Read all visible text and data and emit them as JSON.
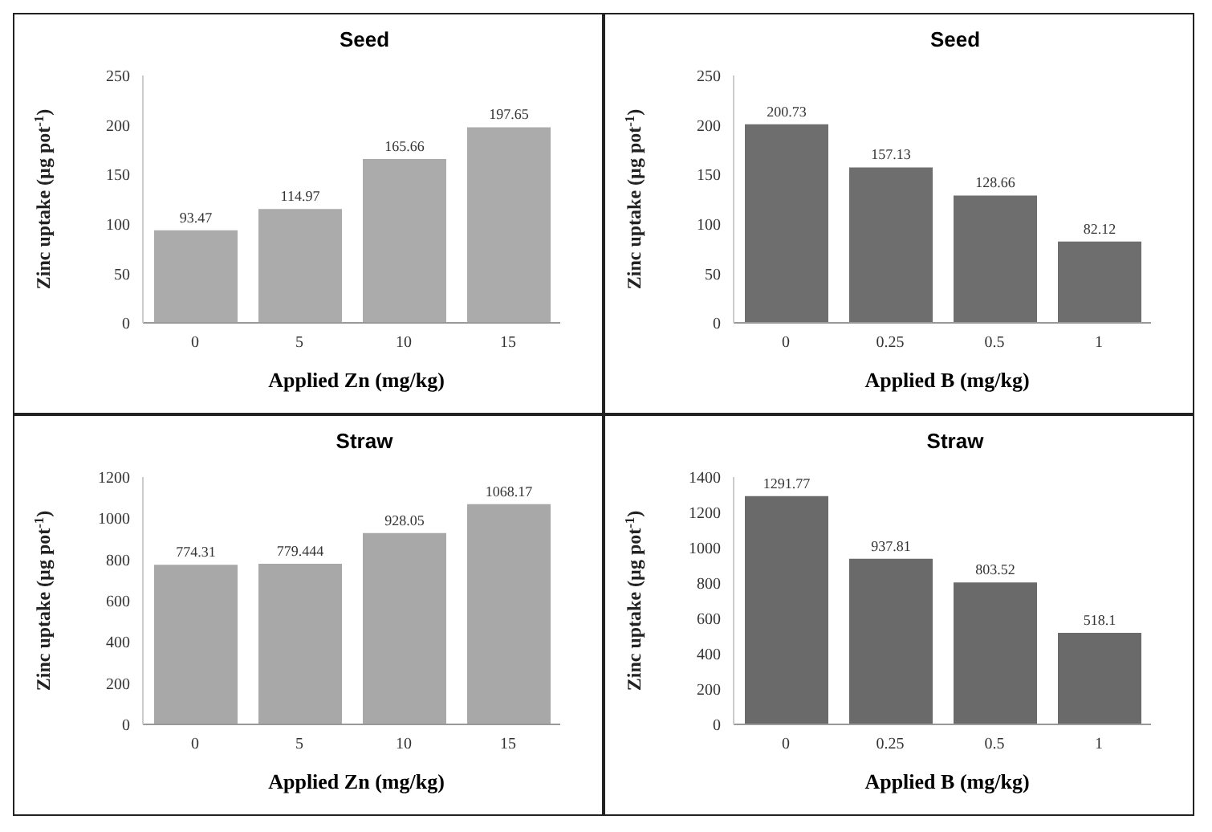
{
  "chart_data": [
    {
      "type": "bar",
      "title": "Seed",
      "xlabel": "Applied Zn (mg/kg)",
      "ylabel": "Zinc uptake (µg pot$^{-1}$)",
      "categories": [
        "0",
        "5",
        "10",
        "15"
      ],
      "values": [
        93.47,
        114.97,
        165.66,
        197.65
      ],
      "color": "#ababab",
      "ylim": [
        0,
        250
      ],
      "yticks": [
        0,
        50,
        100,
        150,
        200,
        250
      ],
      "data_labels": true
    },
    {
      "type": "bar",
      "title": "Seed",
      "xlabel": "Applied B (mg/kg)",
      "ylabel": "Zinc uptake (µg pot$^{-1}$)",
      "categories": [
        "0",
        "0.25",
        "0.5",
        "1"
      ],
      "values": [
        200.73,
        157.13,
        128.66,
        82.12
      ],
      "color": "#6e6e6e",
      "ylim": [
        0,
        250
      ],
      "yticks": [
        0,
        50,
        100,
        150,
        200,
        250
      ],
      "data_labels": true
    },
    {
      "type": "bar",
      "title": "Straw",
      "xlabel": "Applied Zn (mg/kg)",
      "ylabel": "Zinc uptake (µg pot$^{-1}$)",
      "categories": [
        "0",
        "5",
        "10",
        "15"
      ],
      "values": [
        774.31,
        779.444,
        928.05,
        1068.17
      ],
      "color": "#a8a8a8",
      "ylim": [
        0,
        1200
      ],
      "yticks": [
        0,
        200,
        400,
        600,
        800,
        1000,
        1200
      ],
      "data_labels": true
    },
    {
      "type": "bar",
      "title": "Straw",
      "xlabel": "Applied B (mg/kg)",
      "ylabel": "Zinc uptake (µg pot$^{-1}$)",
      "categories": [
        "0",
        "0.25",
        "0.5",
        "1"
      ],
      "values": [
        1291.77,
        937.81,
        803.52,
        518.1
      ],
      "color": "#6a6a6a",
      "ylim": [
        0,
        1400
      ],
      "yticks": [
        0,
        200,
        400,
        600,
        800,
        1000,
        1200,
        1400
      ],
      "data_labels": true
    }
  ]
}
